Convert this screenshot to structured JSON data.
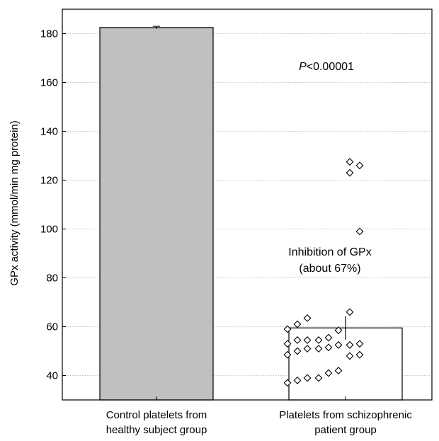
{
  "chart_data": {
    "type": "bar",
    "categories": [
      "Control platelets from\nhealthy subject group",
      "Platelets from schizophrenic\npatient group"
    ],
    "series": [
      {
        "values": [
          182.5,
          59.5
        ],
        "error": [
          0.5,
          4.8
        ]
      }
    ],
    "points": [
      {
        "x": 2,
        "group_offset": -0.41,
        "y": 59.0
      },
      {
        "x": 2,
        "group_offset": -0.41,
        "y": 53.0
      },
      {
        "x": 2,
        "group_offset": -0.41,
        "y": 48.5
      },
      {
        "x": 2,
        "group_offset": -0.41,
        "y": 37.0
      },
      {
        "x": 2,
        "group_offset": -0.34,
        "y": 61.0
      },
      {
        "x": 2,
        "group_offset": -0.34,
        "y": 54.5
      },
      {
        "x": 2,
        "group_offset": -0.34,
        "y": 50.0
      },
      {
        "x": 2,
        "group_offset": -0.34,
        "y": 38.0
      },
      {
        "x": 2,
        "group_offset": -0.27,
        "y": 63.5
      },
      {
        "x": 2,
        "group_offset": -0.27,
        "y": 54.5
      },
      {
        "x": 2,
        "group_offset": -0.27,
        "y": 51.0
      },
      {
        "x": 2,
        "group_offset": -0.27,
        "y": 39.0
      },
      {
        "x": 2,
        "group_offset": -0.19,
        "y": 54.5
      },
      {
        "x": 2,
        "group_offset": -0.19,
        "y": 51.0
      },
      {
        "x": 2,
        "group_offset": -0.19,
        "y": 39.0
      },
      {
        "x": 2,
        "group_offset": -0.12,
        "y": 55.5
      },
      {
        "x": 2,
        "group_offset": -0.12,
        "y": 51.5
      },
      {
        "x": 2,
        "group_offset": -0.12,
        "y": 41.0
      },
      {
        "x": 2,
        "group_offset": -0.05,
        "y": 58.5
      },
      {
        "x": 2,
        "group_offset": -0.05,
        "y": 52.5
      },
      {
        "x": 2,
        "group_offset": -0.05,
        "y": 42.0
      },
      {
        "x": 2,
        "group_offset": 0.03,
        "y": 66.0
      },
      {
        "x": 2,
        "group_offset": 0.03,
        "y": 52.5
      },
      {
        "x": 2,
        "group_offset": 0.03,
        "y": 48.0
      },
      {
        "x": 2,
        "group_offset": 0.03,
        "y": 123.0
      },
      {
        "x": 2,
        "group_offset": 0.03,
        "y": 127.5
      },
      {
        "x": 2,
        "group_offset": 0.1,
        "y": 126.0
      },
      {
        "x": 2,
        "group_offset": 0.1,
        "y": 99.0
      },
      {
        "x": 2,
        "group_offset": 0.1,
        "y": 53.0
      },
      {
        "x": 2,
        "group_offset": 0.1,
        "y": 48.5
      }
    ],
    "ylabel": "GPx  activity (mmol/min mg protein)",
    "xlabel": "",
    "ylim": [
      30,
      190
    ],
    "yticks": [
      40,
      60,
      80,
      100,
      120,
      140,
      160,
      180
    ],
    "grid": true,
    "annotations": [
      "P<0.00001",
      "Inhibition of GPx",
      "(about 67%)"
    ],
    "colors": {
      "control_bar": "#c0c0c0",
      "patient_bar": "#ffffff",
      "stroke": "#000000",
      "grid": "#b0b0b0"
    }
  }
}
